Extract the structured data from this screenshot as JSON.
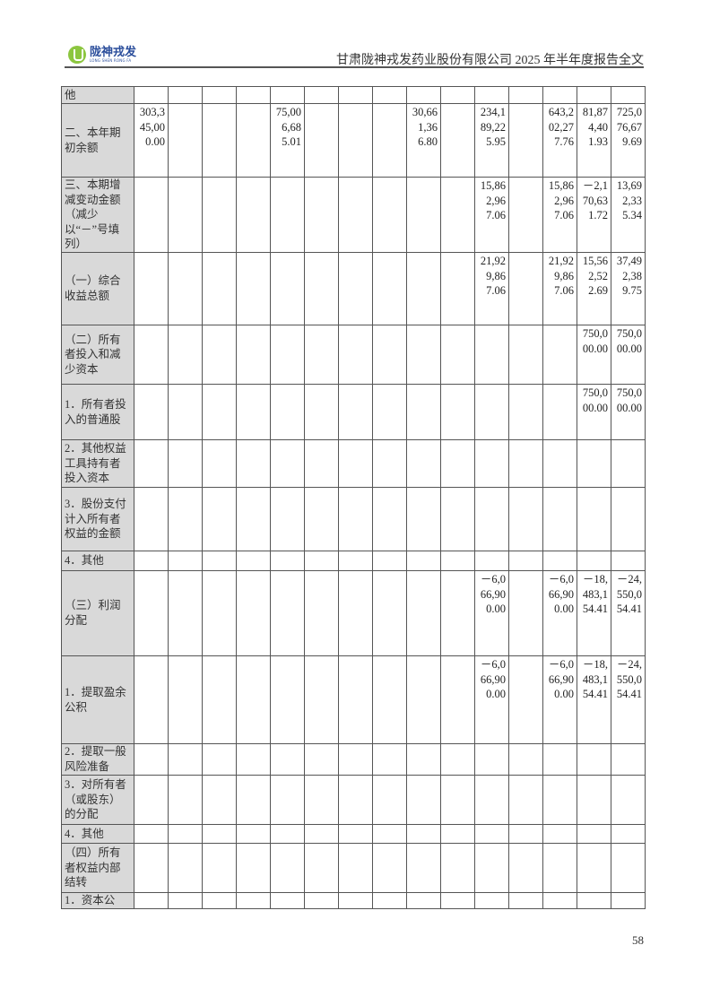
{
  "header": {
    "logo_cn": "陇神戎发",
    "logo_en": "LONG SHEN RONG FA",
    "title": "甘肃陇神戎发药业股份有限公司 2025 年半年度报告全文"
  },
  "table": {
    "rows": [
      {
        "label": "他",
        "values": [
          "",
          "",
          "",
          "",
          "",
          "",
          "",
          "",
          "",
          "",
          "",
          "",
          "",
          "",
          ""
        ]
      },
      {
        "label": "二、本年期初余额",
        "values": [
          "303,345,000.00",
          "",
          "",
          "",
          "75,006,685.01",
          "",
          "",
          "",
          "30,661,366.80",
          "",
          "234,189,225.95",
          "",
          "643,202,277.76",
          "81,874,401.93",
          "725,076,679.69"
        ]
      },
      {
        "label": "三、本期增减变动金额（减少以“－”号填列）",
        "values": [
          "",
          "",
          "",
          "",
          "",
          "",
          "",
          "",
          "",
          "",
          "15,862,967.06",
          "",
          "15,862,967.06",
          "－2,170,631.72",
          "13,692,335.34"
        ]
      },
      {
        "label": "（一）综合收益总额",
        "values": [
          "",
          "",
          "",
          "",
          "",
          "",
          "",
          "",
          "",
          "",
          "21,929,867.06",
          "",
          "21,929,867.06",
          "15,562,522.69",
          "37,492,389.75"
        ]
      },
      {
        "label": "（二）所有者投入和减少资本",
        "values": [
          "",
          "",
          "",
          "",
          "",
          "",
          "",
          "",
          "",
          "",
          "",
          "",
          "",
          "750,000.00",
          "750,000.00"
        ]
      },
      {
        "label": "1．所有者投入的普通股",
        "values": [
          "",
          "",
          "",
          "",
          "",
          "",
          "",
          "",
          "",
          "",
          "",
          "",
          "",
          "750,000.00",
          "750,000.00"
        ]
      },
      {
        "label": "2．其他权益工具持有者投入资本",
        "values": [
          "",
          "",
          "",
          "",
          "",
          "",
          "",
          "",
          "",
          "",
          "",
          "",
          "",
          "",
          ""
        ]
      },
      {
        "label": "3．股份支付计入所有者权益的金额",
        "values": [
          "",
          "",
          "",
          "",
          "",
          "",
          "",
          "",
          "",
          "",
          "",
          "",
          "",
          "",
          ""
        ]
      },
      {
        "label": "4．其他",
        "values": [
          "",
          "",
          "",
          "",
          "",
          "",
          "",
          "",
          "",
          "",
          "",
          "",
          "",
          "",
          ""
        ]
      },
      {
        "label": "（三）利润分配",
        "values": [
          "",
          "",
          "",
          "",
          "",
          "",
          "",
          "",
          "",
          "",
          "－6,066,900.00",
          "",
          "－6,066,900.00",
          "－18,483,154.41",
          "－24,550,054.41"
        ]
      },
      {
        "label": "1．提取盈余公积",
        "values": [
          "",
          "",
          "",
          "",
          "",
          "",
          "",
          "",
          "",
          "",
          "－6,066,900.00",
          "",
          "－6,066,900.00",
          "－18,483,154.41",
          "－24,550,054.41"
        ]
      },
      {
        "label": "2．提取一般风险准备",
        "values": [
          "",
          "",
          "",
          "",
          "",
          "",
          "",
          "",
          "",
          "",
          "",
          "",
          "",
          "",
          ""
        ]
      },
      {
        "label": "3．对所有者（或股东）的分配",
        "values": [
          "",
          "",
          "",
          "",
          "",
          "",
          "",
          "",
          "",
          "",
          "",
          "",
          "",
          "",
          ""
        ]
      },
      {
        "label": "4．其他",
        "values": [
          "",
          "",
          "",
          "",
          "",
          "",
          "",
          "",
          "",
          "",
          "",
          "",
          "",
          "",
          ""
        ]
      },
      {
        "label": "（四）所有者权益内部结转",
        "values": [
          "",
          "",
          "",
          "",
          "",
          "",
          "",
          "",
          "",
          "",
          "",
          "",
          "",
          "",
          ""
        ]
      },
      {
        "label": "1．资本公",
        "values": [
          "",
          "",
          "",
          "",
          "",
          "",
          "",
          "",
          "",
          "",
          "",
          "",
          "",
          "",
          ""
        ]
      }
    ]
  },
  "footer": {
    "page_number": "58"
  }
}
